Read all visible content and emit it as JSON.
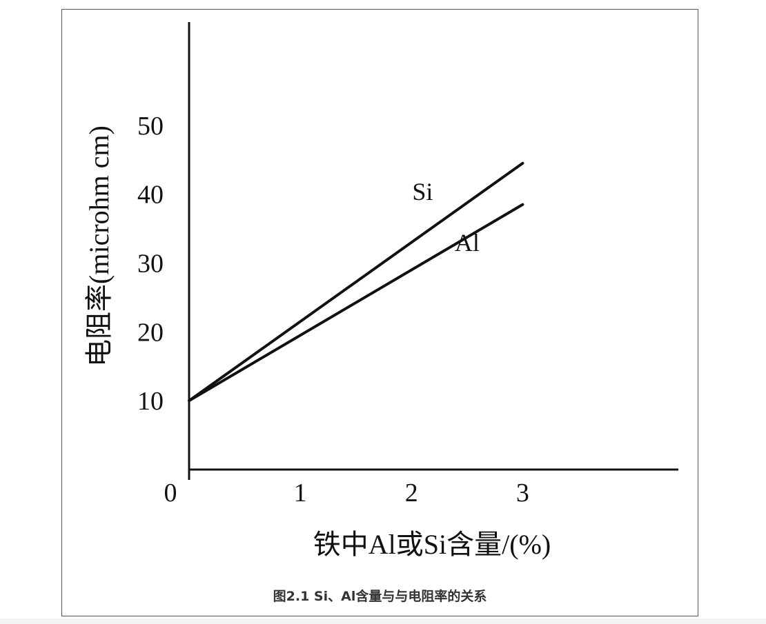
{
  "caption": "图2.1   Si、Al含量与与电阻率的关系",
  "chart_data": {
    "type": "line",
    "title": "",
    "xlabel": "铁中Al或Si含量/(%)",
    "ylabel": "电阻率(microhm cm)",
    "xlim": [
      0,
      4.4
    ],
    "ylim": [
      -1.5,
      65
    ],
    "x_ticks": [
      "0",
      "1",
      "2",
      "3"
    ],
    "x_tick_values": [
      0,
      1,
      2,
      3
    ],
    "y_ticks": [
      "10",
      "20",
      "30",
      "40",
      "50"
    ],
    "y_tick_values": [
      10,
      20,
      30,
      40,
      50
    ],
    "grid": false,
    "legend": "inline labels",
    "series": [
      {
        "name": "Si",
        "x": [
          0,
          3
        ],
        "y": [
          10,
          44.5
        ]
      },
      {
        "name": "Al",
        "x": [
          0,
          3
        ],
        "y": [
          10,
          38.5
        ]
      }
    ],
    "line_color": "#111111"
  }
}
